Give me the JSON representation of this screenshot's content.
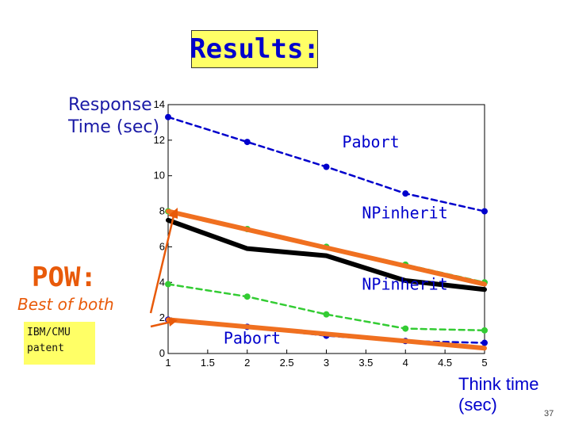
{
  "slide": {
    "title": "Results:",
    "page_number": "37"
  },
  "side_panel": {
    "pow_label": "POW:",
    "tagline": "Best of both",
    "badge_line1": "IBM/CMU",
    "badge_line2": "patent",
    "accent_color": "#e85a0a",
    "badge_color": "#ffff66",
    "arrows": "two-arrows-pointing-to-orange-lines"
  },
  "chart_data": {
    "type": "line",
    "title": "",
    "xlabel": "Think time (sec)",
    "xlabel_lines": [
      "Think time",
      "(sec)"
    ],
    "ylabel": "Response Time (sec)",
    "ylabel_lines": [
      "Response",
      "Time (sec)"
    ],
    "xlim": [
      1,
      5
    ],
    "ylim": [
      0,
      14
    ],
    "xticks": [
      1,
      1.5,
      2,
      2.5,
      3,
      3.5,
      4,
      4.5,
      5
    ],
    "xtick_labels": [
      "1",
      "1.5",
      "2",
      "2.5",
      "3",
      "3.5",
      "4",
      "4.5",
      "5"
    ],
    "yticks": [
      0,
      2,
      4,
      6,
      8,
      10,
      12,
      14
    ],
    "ytick_labels": [
      "0",
      "2",
      "4",
      "6",
      "8",
      "10",
      "12",
      "14"
    ],
    "grid": false,
    "series": [
      {
        "color": "#0000cc",
        "style": "dashed",
        "marker": "dot",
        "x": [
          1,
          2,
          3,
          4,
          5
        ],
        "y": [
          13.3,
          11.9,
          10.5,
          9.0,
          8.0
        ]
      },
      {
        "color": "#33cc33",
        "style": "dashed",
        "marker": "dot",
        "x": [
          1,
          2,
          3,
          4,
          5
        ],
        "y": [
          8.0,
          7.0,
          6.0,
          5.0,
          4.0
        ]
      },
      {
        "color": "#000000",
        "style": "solid",
        "x": [
          1,
          2,
          3,
          4,
          5
        ],
        "y": [
          7.5,
          5.9,
          5.5,
          4.1,
          3.6
        ]
      },
      {
        "color": "#f07020",
        "style": "solid",
        "x": [
          1,
          5
        ],
        "y": [
          8.0,
          3.9
        ]
      },
      {
        "color": "#33cc33",
        "style": "dashed",
        "marker": "dot",
        "x": [
          1,
          2,
          3,
          4,
          5
        ],
        "y": [
          3.9,
          3.2,
          2.2,
          1.4,
          1.3
        ]
      },
      {
        "color": "#0000cc",
        "style": "dashed",
        "marker": "dot",
        "x": [
          1,
          2,
          3,
          4,
          5
        ],
        "y": [
          1.9,
          1.5,
          1.0,
          0.7,
          0.6
        ]
      },
      {
        "color": "#f07020",
        "style": "solid",
        "x": [
          1,
          5
        ],
        "y": [
          1.9,
          0.3
        ]
      }
    ],
    "annotations": [
      {
        "text": "Pabort",
        "color": "#0000cc",
        "x": 3.2,
        "y": 11.6
      },
      {
        "text": "NPinherit",
        "color": "#0000cc",
        "x": 3.45,
        "y": 7.6
      },
      {
        "text": "NPinherit",
        "color": "#0000cc",
        "x": 3.45,
        "y": 3.6
      },
      {
        "text": "Pabort",
        "color": "#0000cc",
        "x": 1.7,
        "y": 0.55
      }
    ]
  }
}
